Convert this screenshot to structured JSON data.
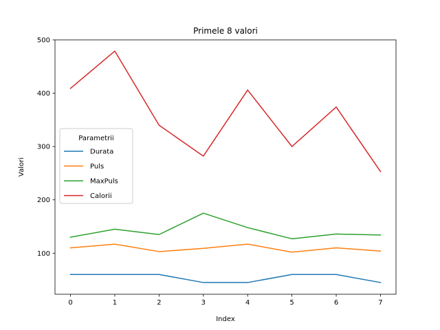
{
  "chart_data": {
    "type": "line",
    "title": "Primele 8 valori",
    "xlabel": "Index",
    "ylabel": "Valori",
    "x": [
      0,
      1,
      2,
      3,
      4,
      5,
      6,
      7
    ],
    "xticks": [
      0,
      1,
      2,
      3,
      4,
      5,
      6,
      7
    ],
    "yticks": [
      100,
      200,
      300,
      400,
      500
    ],
    "xlim": [
      -0.35,
      7.35
    ],
    "ylim": [
      23,
      500
    ],
    "grid": false,
    "legend": {
      "title": "Parametrii",
      "placement": "center-left"
    },
    "series": [
      {
        "name": "Durata",
        "color": "#1f77b4",
        "values": [
          60,
          60,
          60,
          45,
          45,
          60,
          60,
          45
        ]
      },
      {
        "name": "Puls",
        "color": "#ff7f0e",
        "values": [
          110,
          117,
          103,
          109,
          117,
          102,
          110,
          104
        ]
      },
      {
        "name": "MaxPuls",
        "color": "#2ca02c",
        "values": [
          130,
          145,
          135,
          175,
          148,
          127,
          136,
          134
        ]
      },
      {
        "name": "Calorii",
        "color": "#d62728",
        "values": [
          409,
          479,
          340,
          282,
          406,
          300,
          374,
          253
        ]
      }
    ]
  }
}
